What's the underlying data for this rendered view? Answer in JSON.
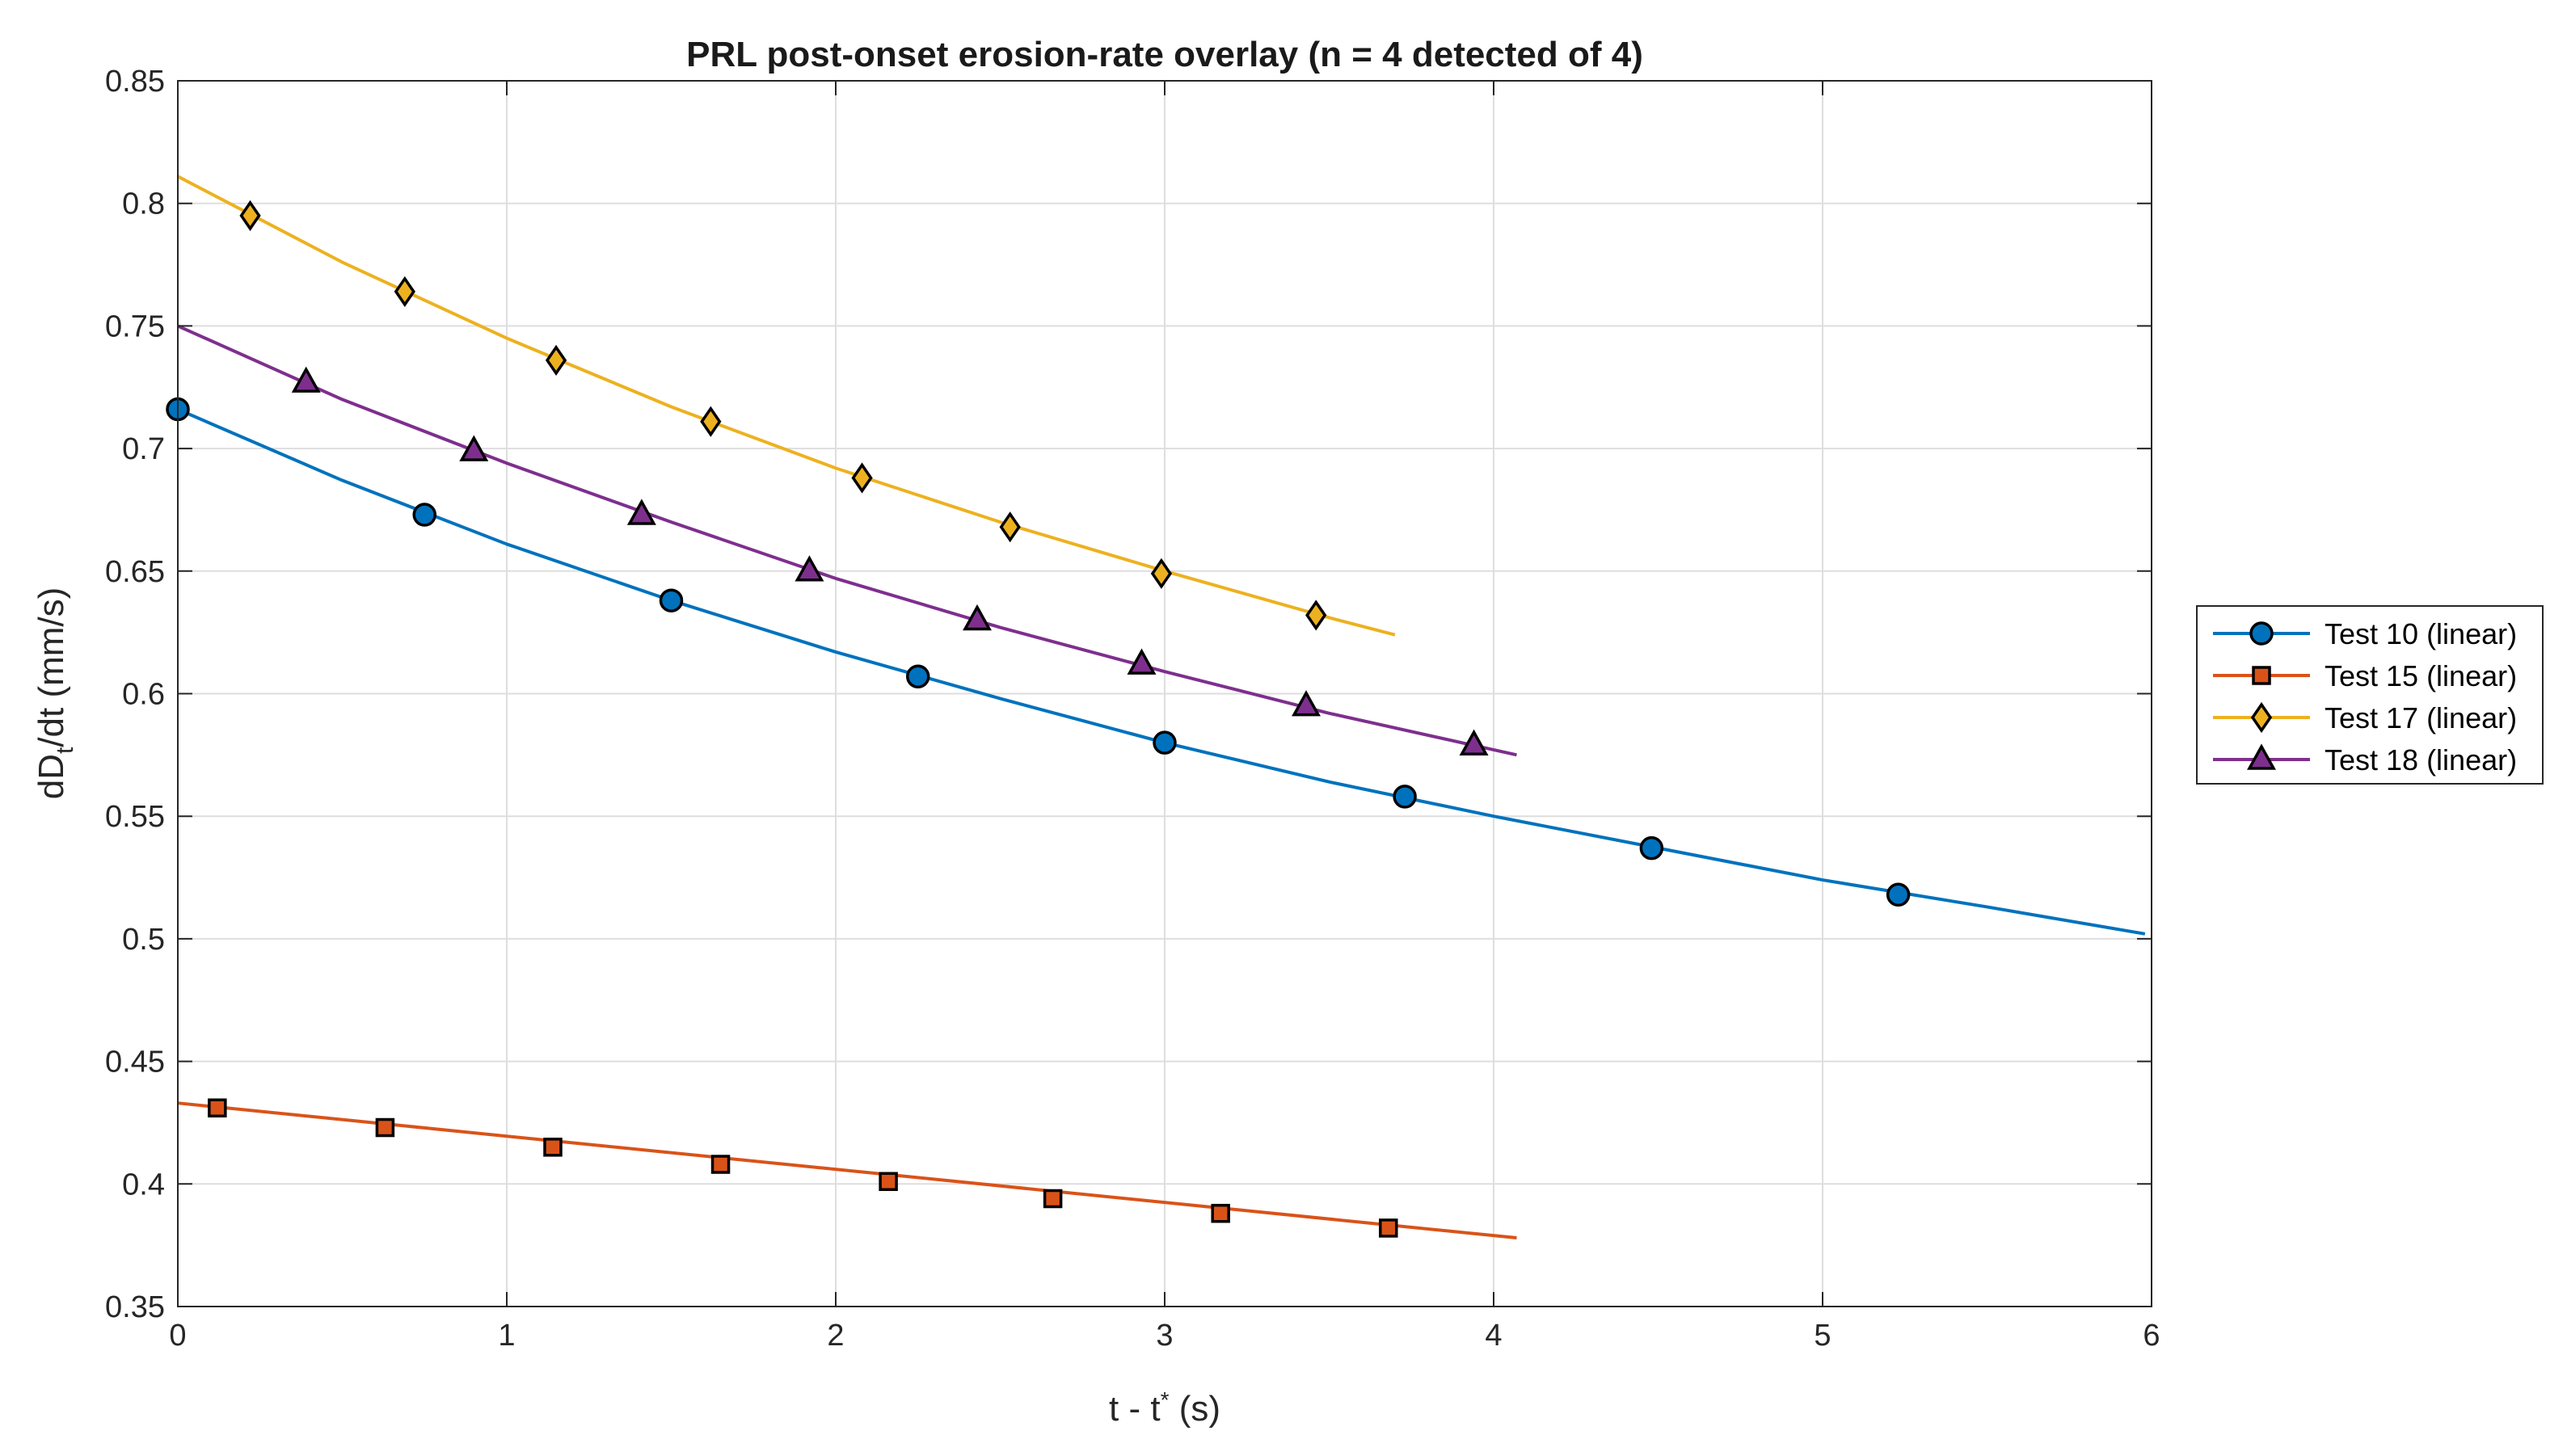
{
  "chart_data": {
    "type": "line",
    "title": "PRL post-onset erosion-rate overlay (n = 4 detected of 4)",
    "xlabel": {
      "main": "t - t",
      "sup": "*",
      "tail": " (s)"
    },
    "ylabel": {
      "main": "dD",
      "sub": "t",
      "tail": "/dt (mm/s)"
    },
    "xlim": [
      0,
      6
    ],
    "ylim": [
      0.35,
      0.85
    ],
    "xticks": [
      0,
      1,
      2,
      3,
      4,
      5,
      6
    ],
    "xtick_labels": [
      "0",
      "1",
      "2",
      "3",
      "4",
      "5",
      "6"
    ],
    "yticks": [
      0.35,
      0.4,
      0.45,
      0.5,
      0.55,
      0.6,
      0.65,
      0.7,
      0.75,
      0.8,
      0.85
    ],
    "ytick_labels": [
      "0.35",
      "0.4",
      "0.45",
      "0.5",
      "0.55",
      "0.6",
      "0.65",
      "0.7",
      "0.75",
      "0.8",
      "0.85"
    ],
    "grid": true,
    "legend_position": "outside-right",
    "series": [
      {
        "name": "Test 10 (linear)",
        "color": "#0072BD",
        "marker": "circle",
        "line_x": [
          0,
          0.5,
          1,
          1.5,
          2,
          2.5,
          3,
          3.5,
          4,
          4.5,
          5,
          5.5,
          5.98
        ],
        "line_y": [
          0.716,
          0.687,
          0.661,
          0.638,
          0.617,
          0.598,
          0.58,
          0.564,
          0.55,
          0.537,
          0.524,
          0.513,
          0.502
        ],
        "marker_x": [
          0,
          0.75,
          1.5,
          2.25,
          3.0,
          3.73,
          4.48,
          5.23
        ],
        "marker_y": [
          0.716,
          0.673,
          0.638,
          0.607,
          0.58,
          0.558,
          0.537,
          0.518
        ]
      },
      {
        "name": "Test 15 (linear)",
        "color": "#D95319",
        "marker": "square",
        "line_x": [
          0,
          4.07
        ],
        "line_y": [
          0.433,
          0.378
        ],
        "marker_x": [
          0.12,
          0.63,
          1.14,
          1.65,
          2.16,
          2.66,
          3.17,
          3.68
        ],
        "marker_y": [
          0.431,
          0.423,
          0.415,
          0.408,
          0.401,
          0.394,
          0.388,
          0.382
        ]
      },
      {
        "name": "Test 17 (linear)",
        "color": "#EDB120",
        "marker": "diamond",
        "line_x": [
          0,
          0.5,
          1,
          1.5,
          2,
          2.5,
          3,
          3.5,
          3.7
        ],
        "line_y": [
          0.811,
          0.776,
          0.745,
          0.717,
          0.692,
          0.67,
          0.65,
          0.631,
          0.624
        ],
        "marker_x": [
          0.22,
          0.69,
          1.15,
          1.62,
          2.08,
          2.53,
          2.99,
          3.46
        ],
        "marker_y": [
          0.795,
          0.764,
          0.736,
          0.711,
          0.688,
          0.668,
          0.649,
          0.632
        ]
      },
      {
        "name": "Test 18 (linear)",
        "color": "#7E2F8E",
        "marker": "triangle",
        "line_x": [
          0,
          0.5,
          1,
          1.5,
          2,
          2.5,
          3,
          3.5,
          4.07
        ],
        "line_y": [
          0.75,
          0.72,
          0.694,
          0.67,
          0.647,
          0.627,
          0.609,
          0.592,
          0.575
        ],
        "marker_x": [
          0.39,
          0.9,
          1.41,
          1.92,
          2.43,
          2.93,
          3.43,
          3.94
        ],
        "marker_y": [
          0.727,
          0.699,
          0.673,
          0.65,
          0.63,
          0.612,
          0.595,
          0.579
        ]
      }
    ]
  }
}
